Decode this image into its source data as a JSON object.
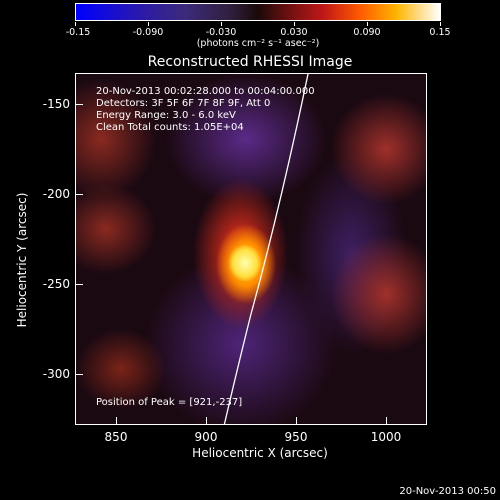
{
  "colorbar": {
    "tick_labels": [
      "-0.15",
      "-0.090",
      "-0.030",
      "0.030",
      "0.090",
      "0.15"
    ],
    "units": "(photons cm⁻² s⁻¹ asec⁻²)",
    "range": [
      -0.15,
      0.15
    ]
  },
  "title": "Reconstructed RHESSI Image",
  "info": {
    "time_range": "20-Nov-2013 00:02:28.000 to 00:04:00.000",
    "detectors": "Detectors: 3F 5F 6F 7F 8F 9F, Att 0",
    "energy": "Energy Range: 3.0 - 6.0 keV",
    "clean": "Clean    Total counts: 1.05E+04"
  },
  "peak": "Position of Peak = [921,-237]",
  "axes": {
    "xlabel": "Heliocentric X (arcsec)",
    "ylabel": "Heliocentric Y (arcsec)",
    "xticks": [
      "850",
      "900",
      "950",
      "1000"
    ],
    "yticks": [
      "-150",
      "-200",
      "-250",
      "-300"
    ],
    "xlim": [
      828,
      1020
    ],
    "ylim": [
      -324,
      -132
    ]
  },
  "timestamp": "20-Nov-2013 00:50"
}
